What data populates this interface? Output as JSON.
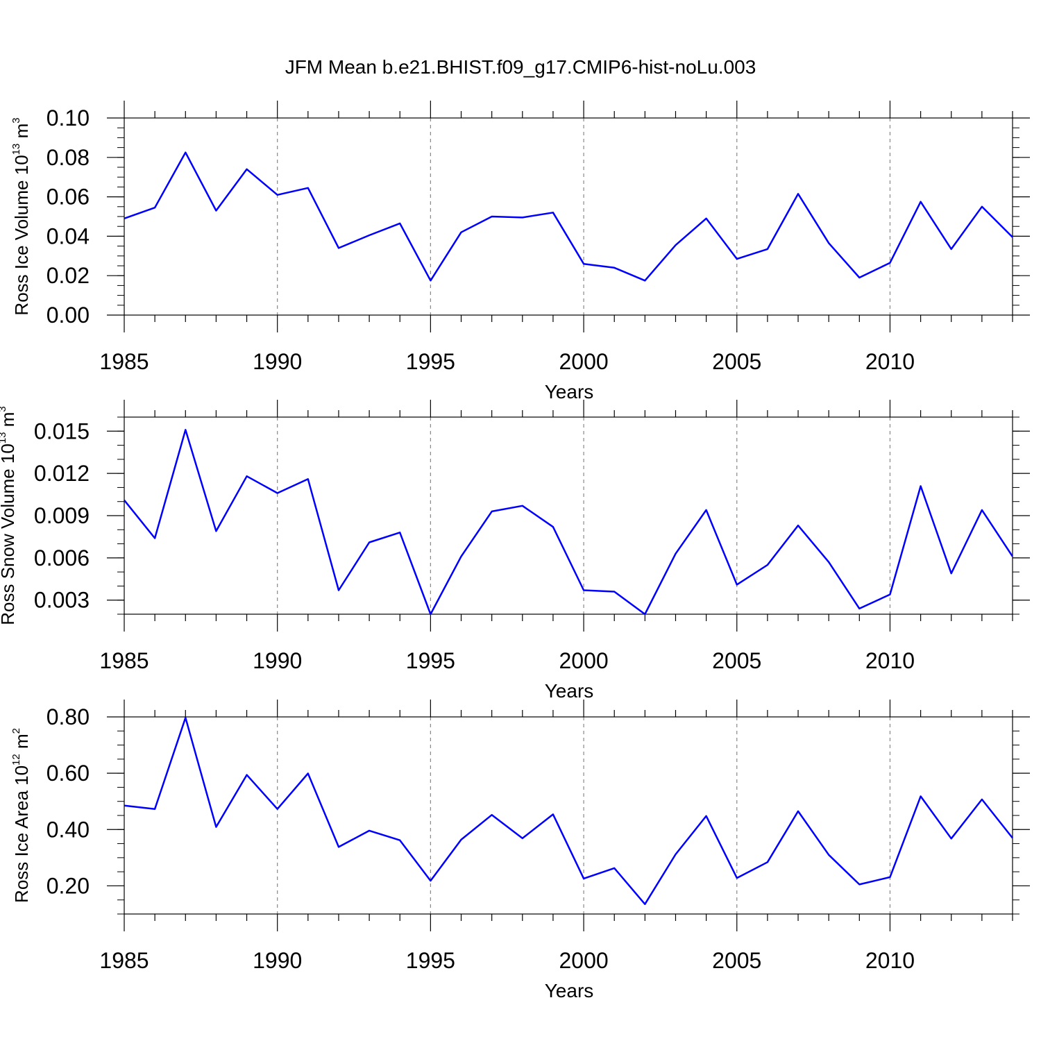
{
  "figure": {
    "title": "JFM Mean b.e21.BHIST.f09_g17.CMIP6-hist-noLu.003"
  },
  "colors": {
    "line": "#0000ff",
    "grid": "#888888",
    "axis": "#000000",
    "background": "#ffffff"
  },
  "chart_data": [
    {
      "type": "line",
      "title": "JFM Mean b.e21.BHIST.f09_g17.CMIP6-hist-noLu.003",
      "xlabel": "Years",
      "ylabel": {
        "main": "Ross Ice Volume 10",
        "sup": "13",
        "unit": "m",
        "unit_sup": "3"
      },
      "xlim": [
        1985,
        2014
      ],
      "ylim": [
        0,
        0.1
      ],
      "xticks": [
        1985,
        1990,
        1995,
        2000,
        2005,
        2010
      ],
      "yticks": [
        0.0,
        0.02,
        0.04,
        0.06,
        0.08,
        0.1
      ],
      "ytick_labels": [
        "0.00",
        "0.02",
        "0.04",
        "0.06",
        "0.08",
        "0.10"
      ],
      "yminor": 0.005,
      "grid": "vertical dashed at major x ticks",
      "series": [
        {
          "name": "Ross Ice Volume",
          "x": [
            1985,
            1986,
            1987,
            1988,
            1989,
            1990,
            1991,
            1992,
            1993,
            1994,
            1995,
            1996,
            1997,
            1998,
            1999,
            2000,
            2001,
            2002,
            2003,
            2004,
            2005,
            2006,
            2007,
            2008,
            2009,
            2010,
            2011,
            2012,
            2013,
            2014
          ],
          "values": [
            0.049,
            0.0545,
            0.0825,
            0.053,
            0.074,
            0.061,
            0.0645,
            0.034,
            0.0405,
            0.0465,
            0.0175,
            0.042,
            0.05,
            0.0495,
            0.052,
            0.026,
            0.024,
            0.0175,
            0.0355,
            0.049,
            0.0285,
            0.0335,
            0.0615,
            0.0365,
            0.019,
            0.0265,
            0.0575,
            0.0335,
            0.055,
            0.0395
          ]
        }
      ]
    },
    {
      "type": "line",
      "xlabel": "Years",
      "ylabel": {
        "main": "Ross Snow Volume 10",
        "sup": "13",
        "unit": "m",
        "unit_sup": "3"
      },
      "xlim": [
        1985,
        2014
      ],
      "ylim": [
        0.002,
        0.016
      ],
      "xticks": [
        1985,
        1990,
        1995,
        2000,
        2005,
        2010
      ],
      "yticks": [
        0.003,
        0.006,
        0.009,
        0.012,
        0.015
      ],
      "ytick_labels": [
        "0.003",
        "0.006",
        "0.009",
        "0.012",
        "0.015"
      ],
      "yminor": 0.001,
      "grid": "vertical dashed at major x ticks",
      "series": [
        {
          "name": "Ross Snow Volume",
          "x": [
            1985,
            1986,
            1987,
            1988,
            1989,
            1990,
            1991,
            1992,
            1993,
            1994,
            1995,
            1996,
            1997,
            1998,
            1999,
            2000,
            2001,
            2002,
            2003,
            2004,
            2005,
            2006,
            2007,
            2008,
            2009,
            2010,
            2011,
            2012,
            2013,
            2014
          ],
          "values": [
            0.0101,
            0.0074,
            0.0151,
            0.0079,
            0.0118,
            0.0106,
            0.0116,
            0.0037,
            0.0071,
            0.0078,
            0.002,
            0.0061,
            0.0093,
            0.0097,
            0.0082,
            0.0037,
            0.0036,
            0.002,
            0.0063,
            0.0094,
            0.0041,
            0.0055,
            0.0083,
            0.0057,
            0.0024,
            0.0034,
            0.0111,
            0.0049,
            0.0094,
            0.0061
          ]
        }
      ]
    },
    {
      "type": "line",
      "xlabel": "Years",
      "ylabel": {
        "main": "Ross Ice Area 10",
        "sup": "12",
        "unit": "m",
        "unit_sup": "2"
      },
      "xlim": [
        1985,
        2014
      ],
      "ylim": [
        0.1,
        0.8
      ],
      "xticks": [
        1985,
        1990,
        1995,
        2000,
        2005,
        2010
      ],
      "yticks": [
        0.2,
        0.4,
        0.6,
        0.8
      ],
      "ytick_labels": [
        "0.20",
        "0.40",
        "0.60",
        "0.80"
      ],
      "yminor": 0.05,
      "grid": "vertical dashed at major x ticks",
      "series": [
        {
          "name": "Ross Ice Area",
          "x": [
            1985,
            1986,
            1987,
            1988,
            1989,
            1990,
            1991,
            1992,
            1993,
            1994,
            1995,
            1996,
            1997,
            1998,
            1999,
            2000,
            2001,
            2002,
            2003,
            2004,
            2005,
            2006,
            2007,
            2008,
            2009,
            2010,
            2011,
            2012,
            2013,
            2014
          ],
          "values": [
            0.485,
            0.473,
            0.797,
            0.409,
            0.594,
            0.473,
            0.599,
            0.338,
            0.396,
            0.362,
            0.218,
            0.364,
            0.452,
            0.369,
            0.454,
            0.226,
            0.263,
            0.135,
            0.312,
            0.448,
            0.228,
            0.284,
            0.465,
            0.31,
            0.205,
            0.231,
            0.518,
            0.368,
            0.507,
            0.37
          ]
        }
      ]
    }
  ]
}
